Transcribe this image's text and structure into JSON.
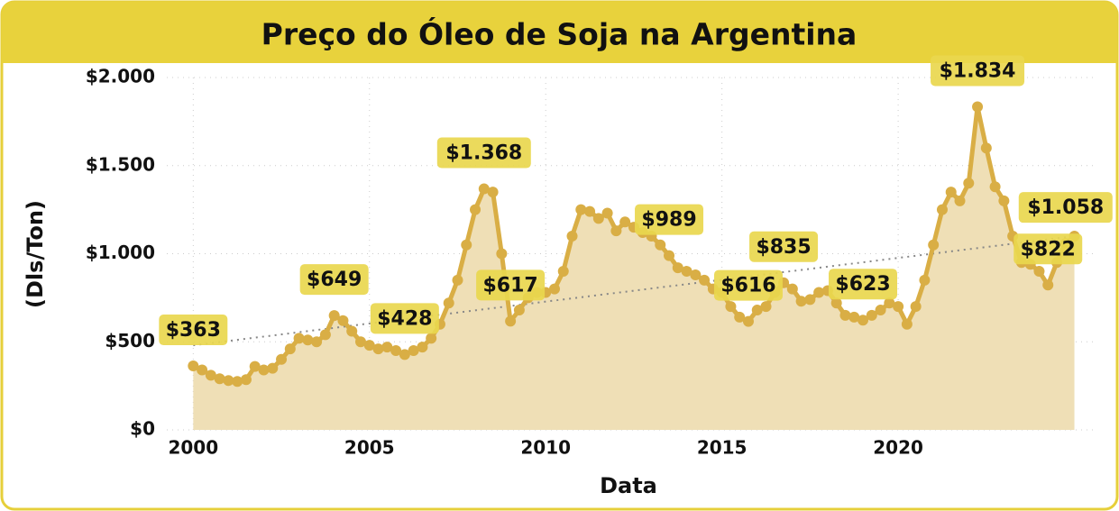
{
  "chart_data": {
    "type": "line",
    "title": "Preço do Óleo de Soja na Argentina",
    "xlabel": "Data",
    "ylabel": "(Dls/Ton)",
    "color": "#d9ae45",
    "fill": "#efdfb6",
    "grid": true,
    "xlim": [
      1999.25,
      2025.6
    ],
    "ylim": [
      0,
      2000
    ],
    "xticks": [
      2000,
      2005,
      2010,
      2015,
      2020
    ],
    "yticks": [
      {
        "value": 0,
        "label": "$0"
      },
      {
        "value": 500,
        "label": "$500"
      },
      {
        "value": 1000,
        "label": "$1.000"
      },
      {
        "value": 1500,
        "label": "$1.500"
      },
      {
        "value": 2000,
        "label": "$2.000"
      }
    ],
    "x": [
      2000,
      2000.25,
      2000.5,
      2000.75,
      2001,
      2001.25,
      2001.5,
      2001.75,
      2002,
      2002.25,
      2002.5,
      2002.75,
      2003,
      2003.25,
      2003.5,
      2003.75,
      2004,
      2004.25,
      2004.5,
      2004.75,
      2005,
      2005.25,
      2005.5,
      2005.75,
      2006,
      2006.25,
      2006.5,
      2006.75,
      2007,
      2007.25,
      2007.5,
      2007.75,
      2008,
      2008.25,
      2008.5,
      2008.75,
      2009,
      2009.25,
      2009.5,
      2009.75,
      2010,
      2010.25,
      2010.5,
      2010.75,
      2011,
      2011.25,
      2011.5,
      2011.75,
      2012,
      2012.25,
      2012.5,
      2012.75,
      2013,
      2013.25,
      2013.5,
      2013.75,
      2014,
      2014.25,
      2014.5,
      2014.75,
      2015,
      2015.25,
      2015.5,
      2015.75,
      2016,
      2016.25,
      2016.5,
      2016.75,
      2017,
      2017.25,
      2017.5,
      2017.75,
      2018,
      2018.25,
      2018.5,
      2018.75,
      2019,
      2019.25,
      2019.5,
      2019.75,
      2020,
      2020.25,
      2020.5,
      2020.75,
      2021,
      2021.25,
      2021.5,
      2021.75,
      2022,
      2022.25,
      2022.5,
      2022.75,
      2023,
      2023.25,
      2023.5,
      2023.75,
      2024,
      2024.25,
      2024.5,
      2024.75,
      2025
    ],
    "values": [
      363,
      340,
      310,
      290,
      280,
      275,
      285,
      360,
      340,
      350,
      400,
      460,
      520,
      510,
      500,
      540,
      649,
      620,
      560,
      500,
      480,
      460,
      470,
      450,
      428,
      450,
      470,
      520,
      600,
      720,
      850,
      1050,
      1250,
      1368,
      1350,
      1000,
      617,
      680,
      750,
      780,
      780,
      800,
      900,
      1100,
      1250,
      1240,
      1200,
      1230,
      1130,
      1180,
      1150,
      1120,
      1100,
      1050,
      989,
      920,
      900,
      880,
      850,
      800,
      780,
      700,
      640,
      616,
      680,
      700,
      780,
      835,
      800,
      730,
      740,
      780,
      790,
      720,
      650,
      640,
      623,
      650,
      680,
      720,
      700,
      600,
      700,
      850,
      1050,
      1250,
      1350,
      1300,
      1400,
      1834,
      1600,
      1380,
      1300,
      1100,
      950,
      940,
      900,
      822,
      950,
      1058,
      1100
    ],
    "trend": {
      "x": [
        2000,
        2025
      ],
      "values": [
        480,
        1100
      ]
    },
    "annotations": [
      {
        "x": 2000,
        "value": 363,
        "label": "$363"
      },
      {
        "x": 2004,
        "value": 649,
        "label": "$649"
      },
      {
        "x": 2006,
        "value": 428,
        "label": "$428"
      },
      {
        "x": 2008.25,
        "value": 1368,
        "label": "$1.368"
      },
      {
        "x": 2009,
        "value": 617,
        "label": "$617"
      },
      {
        "x": 2013.5,
        "value": 989,
        "label": "$989"
      },
      {
        "x": 2015.75,
        "value": 616,
        "label": "$616"
      },
      {
        "x": 2016.75,
        "value": 835,
        "label": "$835"
      },
      {
        "x": 2019,
        "value": 623,
        "label": "$623"
      },
      {
        "x": 2022.25,
        "value": 1834,
        "label": "$1.834"
      },
      {
        "x": 2024.75,
        "value": 1058,
        "label": "$1.058"
      },
      {
        "x": 2024.25,
        "value": 822,
        "label": "$822"
      }
    ]
  }
}
